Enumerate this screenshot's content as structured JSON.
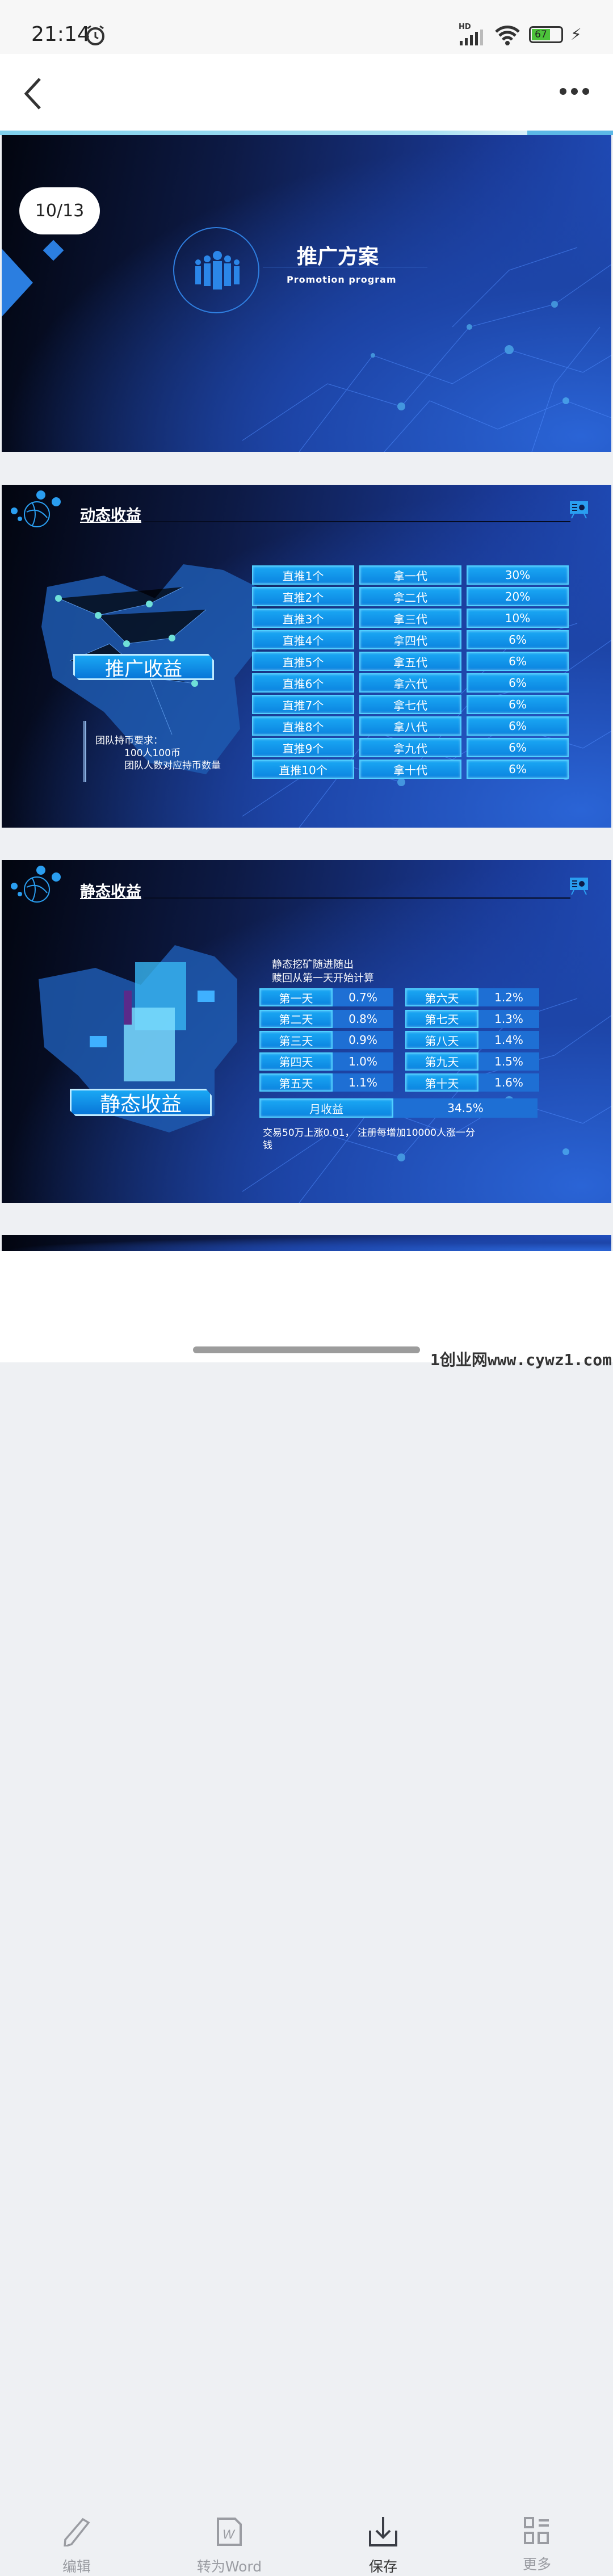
{
  "status": {
    "time": "21:14",
    "battery": "67",
    "network": "HD"
  },
  "viewer": {
    "page_indicator": "10/13"
  },
  "slide1": {
    "title": "推广方案",
    "subtitle": "Promotion program"
  },
  "slide2": {
    "title": "动态收益",
    "badge": "推广收益",
    "note": [
      "团队持币要求：",
      "100人100币",
      "团队人数对应持币数量"
    ],
    "rows": [
      [
        "直推1个",
        "拿一代",
        "30%"
      ],
      [
        "直推2个",
        "拿二代",
        "20%"
      ],
      [
        "直推3个",
        "拿三代",
        "10%"
      ],
      [
        "直推4个",
        "拿四代",
        "6%"
      ],
      [
        "直推5个",
        "拿五代",
        "6%"
      ],
      [
        "直推6个",
        "拿六代",
        "6%"
      ],
      [
        "直推7个",
        "拿七代",
        "6%"
      ],
      [
        "直推8个",
        "拿八代",
        "6%"
      ],
      [
        "直推9个",
        "拿九代",
        "6%"
      ],
      [
        "直推10个",
        "拿十代",
        "6%"
      ]
    ]
  },
  "slide3": {
    "title": "静态收益",
    "badge": "静态收益",
    "intro": [
      "静态挖矿随进随出",
      "赎回从第一天开始计算"
    ],
    "days": [
      [
        "第一天",
        "0.7%"
      ],
      [
        "第二天",
        "0.8%"
      ],
      [
        "第三天",
        "0.9%"
      ],
      [
        "第四天",
        "1.0%"
      ],
      [
        "第五天",
        "1.1%"
      ],
      [
        "第六天",
        "1.2%"
      ],
      [
        "第七天",
        "1.3%"
      ],
      [
        "第八天",
        "1.4%"
      ],
      [
        "第九天",
        "1.5%"
      ],
      [
        "第十天",
        "1.6%"
      ]
    ],
    "monthly_label": "月收益",
    "monthly_value": "34.5%",
    "footnote": "交易50万上涨0.01， 注册每增加10000人涨一分钱"
  },
  "bottom_nav": [
    {
      "label": "编辑",
      "icon": "pencil-icon"
    },
    {
      "label": "转为Word",
      "icon": "word-icon"
    },
    {
      "label": "保存",
      "icon": "download-icon"
    },
    {
      "label": "更多",
      "icon": "grid-icon"
    }
  ],
  "watermark": "1创业网www.cywz1.com",
  "colors": {
    "cell": "#0b84e0",
    "value_cell": "#1e6fd4",
    "active_nav": "#333",
    "inactive_nav": "#9a9ca2"
  }
}
